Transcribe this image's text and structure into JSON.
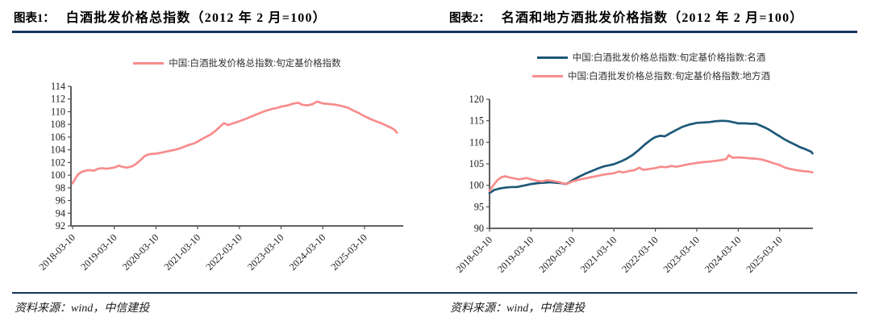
{
  "figure1": {
    "label": "图表1：",
    "title": "白酒批发价格总指数（2012 年 2 月=100）",
    "source": "资料来源：wind，中信建投"
  },
  "figure2": {
    "label": "图表2：",
    "title": "名酒和地方酒批发价格指数（2012 年 2 月=100）",
    "source": "资料来源：wind，中信建投"
  },
  "colors": {
    "accent_rule": "#16365C",
    "axis": "#4d4d4d",
    "tick_text": "#1a1a1a",
    "famous_blue": "#1D5878",
    "local_pink": "#F88C8C"
  },
  "chart_data": [
    {
      "type": "line",
      "title": "白酒批发价格总指数（2012 年 2 月=100）",
      "legend_position": "top",
      "grid": false,
      "ylim": [
        92,
        114
      ],
      "yticks": [
        92,
        94,
        96,
        98,
        100,
        102,
        104,
        106,
        108,
        110,
        112,
        114
      ],
      "xtick_labels": [
        "2018-03-10",
        "2019-03-10",
        "2020-03-10",
        "2021-03-10",
        "2022-03-10",
        "2023-03-10",
        "2024-03-10",
        "2025-03-10"
      ],
      "xtick_years": [
        2018.19,
        2019.19,
        2020.19,
        2021.19,
        2022.19,
        2023.19,
        2024.19,
        2025.19
      ],
      "series": [
        {
          "name": "中国:白酒批发价格总指数:旬定基价格指数",
          "color": "#F88C8C",
          "points": [
            [
              2018.19,
              98.7
            ],
            [
              2018.25,
              99.4
            ],
            [
              2018.32,
              100.1
            ],
            [
              2018.4,
              100.5
            ],
            [
              2018.5,
              100.7
            ],
            [
              2018.6,
              100.8
            ],
            [
              2018.7,
              100.7
            ],
            [
              2018.8,
              101.0
            ],
            [
              2018.9,
              101.1
            ],
            [
              2019.0,
              101.0
            ],
            [
              2019.1,
              101.1
            ],
            [
              2019.19,
              101.2
            ],
            [
              2019.3,
              101.5
            ],
            [
              2019.4,
              101.3
            ],
            [
              2019.5,
              101.2
            ],
            [
              2019.62,
              101.4
            ],
            [
              2019.72,
              101.8
            ],
            [
              2019.82,
              102.4
            ],
            [
              2019.92,
              103.0
            ],
            [
              2020.02,
              103.3
            ],
            [
              2020.19,
              103.4
            ],
            [
              2020.35,
              103.6
            ],
            [
              2020.5,
              103.8
            ],
            [
              2020.65,
              104.0
            ],
            [
              2020.8,
              104.3
            ],
            [
              2020.95,
              104.7
            ],
            [
              2021.1,
              105.0
            ],
            [
              2021.19,
              105.3
            ],
            [
              2021.35,
              105.9
            ],
            [
              2021.5,
              106.4
            ],
            [
              2021.62,
              107.0
            ],
            [
              2021.72,
              107.6
            ],
            [
              2021.82,
              108.2
            ],
            [
              2021.92,
              107.9
            ],
            [
              2022.05,
              108.2
            ],
            [
              2022.19,
              108.5
            ],
            [
              2022.35,
              108.9
            ],
            [
              2022.5,
              109.3
            ],
            [
              2022.65,
              109.7
            ],
            [
              2022.8,
              110.1
            ],
            [
              2022.95,
              110.4
            ],
            [
              2023.1,
              110.6
            ],
            [
              2023.19,
              110.8
            ],
            [
              2023.35,
              111.0
            ],
            [
              2023.5,
              111.3
            ],
            [
              2023.6,
              111.4
            ],
            [
              2023.7,
              111.1
            ],
            [
              2023.82,
              111.0
            ],
            [
              2023.95,
              111.2
            ],
            [
              2024.05,
              111.6
            ],
            [
              2024.19,
              111.3
            ],
            [
              2024.35,
              111.2
            ],
            [
              2024.5,
              111.1
            ],
            [
              2024.65,
              110.9
            ],
            [
              2024.8,
              110.6
            ],
            [
              2024.95,
              110.1
            ],
            [
              2025.05,
              109.8
            ],
            [
              2025.19,
              109.3
            ],
            [
              2025.35,
              108.8
            ],
            [
              2025.5,
              108.4
            ],
            [
              2025.62,
              108.1
            ],
            [
              2025.75,
              107.7
            ],
            [
              2025.85,
              107.4
            ],
            [
              2025.92,
              107.1
            ],
            [
              2025.97,
              106.7
            ]
          ]
        }
      ]
    },
    {
      "type": "line",
      "title": "名酒和地方酒批发价格指数（2012 年 2 月=100）",
      "legend_position": "top",
      "grid": false,
      "ylim": [
        90,
        120
      ],
      "yticks": [
        90,
        95,
        100,
        105,
        110,
        115,
        120
      ],
      "xtick_labels": [
        "2018-03-10",
        "2019-03-10",
        "2020-03-10",
        "2021-03-10",
        "2022-03-10",
        "2023-03-10",
        "2024-03-10",
        "2025-03-10"
      ],
      "xtick_years": [
        2018.19,
        2019.19,
        2020.19,
        2021.19,
        2022.19,
        2023.19,
        2024.19,
        2025.19
      ],
      "series": [
        {
          "name": "中国:白酒批发价格总指数:旬定基价格指数:名酒",
          "color": "#1D5878",
          "points": [
            [
              2018.19,
              98.2
            ],
            [
              2018.3,
              98.9
            ],
            [
              2018.45,
              99.3
            ],
            [
              2018.6,
              99.5
            ],
            [
              2018.72,
              99.6
            ],
            [
              2018.85,
              99.6
            ],
            [
              2018.95,
              99.8
            ],
            [
              2019.05,
              100.0
            ],
            [
              2019.19,
              100.3
            ],
            [
              2019.35,
              100.5
            ],
            [
              2019.5,
              100.6
            ],
            [
              2019.65,
              100.7
            ],
            [
              2019.8,
              100.6
            ],
            [
              2019.92,
              100.5
            ],
            [
              2020.02,
              100.3
            ],
            [
              2020.1,
              100.6
            ],
            [
              2020.19,
              101.2
            ],
            [
              2020.35,
              102.0
            ],
            [
              2020.5,
              102.7
            ],
            [
              2020.65,
              103.3
            ],
            [
              2020.8,
              103.9
            ],
            [
              2020.95,
              104.4
            ],
            [
              2021.1,
              104.7
            ],
            [
              2021.19,
              104.9
            ],
            [
              2021.35,
              105.5
            ],
            [
              2021.5,
              106.2
            ],
            [
              2021.65,
              107.1
            ],
            [
              2021.8,
              108.3
            ],
            [
              2021.95,
              109.6
            ],
            [
              2022.1,
              110.7
            ],
            [
              2022.19,
              111.2
            ],
            [
              2022.3,
              111.5
            ],
            [
              2022.42,
              111.4
            ],
            [
              2022.55,
              112.1
            ],
            [
              2022.7,
              112.9
            ],
            [
              2022.85,
              113.6
            ],
            [
              2023.0,
              114.1
            ],
            [
              2023.19,
              114.5
            ],
            [
              2023.35,
              114.6
            ],
            [
              2023.5,
              114.7
            ],
            [
              2023.65,
              114.9
            ],
            [
              2023.8,
              115.0
            ],
            [
              2023.95,
              114.9
            ],
            [
              2024.1,
              114.6
            ],
            [
              2024.19,
              114.4
            ],
            [
              2024.35,
              114.4
            ],
            [
              2024.5,
              114.3
            ],
            [
              2024.62,
              114.3
            ],
            [
              2024.72,
              113.9
            ],
            [
              2024.82,
              113.5
            ],
            [
              2024.92,
              113.0
            ],
            [
              2025.02,
              112.4
            ],
            [
              2025.1,
              111.9
            ],
            [
              2025.19,
              111.4
            ],
            [
              2025.3,
              110.7
            ],
            [
              2025.42,
              110.1
            ],
            [
              2025.55,
              109.5
            ],
            [
              2025.67,
              108.9
            ],
            [
              2025.78,
              108.5
            ],
            [
              2025.88,
              108.1
            ],
            [
              2025.95,
              107.8
            ],
            [
              2025.98,
              107.4
            ]
          ]
        },
        {
          "name": "中国:白酒批发价格总指数:旬定基价格指数:地方酒",
          "color": "#F88C8C",
          "points": [
            [
              2018.19,
              98.7
            ],
            [
              2018.28,
              100.0
            ],
            [
              2018.38,
              101.2
            ],
            [
              2018.48,
              101.9
            ],
            [
              2018.58,
              102.1
            ],
            [
              2018.68,
              101.8
            ],
            [
              2018.78,
              101.6
            ],
            [
              2018.88,
              101.4
            ],
            [
              2018.98,
              101.5
            ],
            [
              2019.08,
              101.7
            ],
            [
              2019.19,
              101.4
            ],
            [
              2019.32,
              101.1
            ],
            [
              2019.45,
              100.9
            ],
            [
              2019.58,
              101.2
            ],
            [
              2019.72,
              101.0
            ],
            [
              2019.85,
              100.8
            ],
            [
              2019.95,
              100.5
            ],
            [
              2020.05,
              100.3
            ],
            [
              2020.19,
              100.9
            ],
            [
              2020.35,
              101.3
            ],
            [
              2020.5,
              101.6
            ],
            [
              2020.65,
              101.9
            ],
            [
              2020.8,
              102.2
            ],
            [
              2020.95,
              102.5
            ],
            [
              2021.1,
              102.7
            ],
            [
              2021.19,
              102.8
            ],
            [
              2021.3,
              103.2
            ],
            [
              2021.42,
              103.0
            ],
            [
              2021.55,
              103.3
            ],
            [
              2021.68,
              103.5
            ],
            [
              2021.8,
              104.1
            ],
            [
              2021.9,
              103.6
            ],
            [
              2022.05,
              103.8
            ],
            [
              2022.19,
              104.0
            ],
            [
              2022.32,
              104.3
            ],
            [
              2022.45,
              104.2
            ],
            [
              2022.58,
              104.5
            ],
            [
              2022.7,
              104.3
            ],
            [
              2022.85,
              104.6
            ],
            [
              2023.0,
              104.9
            ],
            [
              2023.19,
              105.2
            ],
            [
              2023.35,
              105.4
            ],
            [
              2023.5,
              105.5
            ],
            [
              2023.65,
              105.7
            ],
            [
              2023.8,
              105.9
            ],
            [
              2023.9,
              106.1
            ],
            [
              2023.96,
              107.0
            ],
            [
              2024.05,
              106.4
            ],
            [
              2024.19,
              106.5
            ],
            [
              2024.32,
              106.4
            ],
            [
              2024.45,
              106.3
            ],
            [
              2024.6,
              106.2
            ],
            [
              2024.75,
              106.0
            ],
            [
              2024.9,
              105.6
            ],
            [
              2025.05,
              105.1
            ],
            [
              2025.19,
              104.7
            ],
            [
              2025.32,
              104.1
            ],
            [
              2025.45,
              103.8
            ],
            [
              2025.6,
              103.5
            ],
            [
              2025.75,
              103.3
            ],
            [
              2025.88,
              103.2
            ],
            [
              2025.98,
              103.0
            ]
          ]
        }
      ]
    }
  ]
}
